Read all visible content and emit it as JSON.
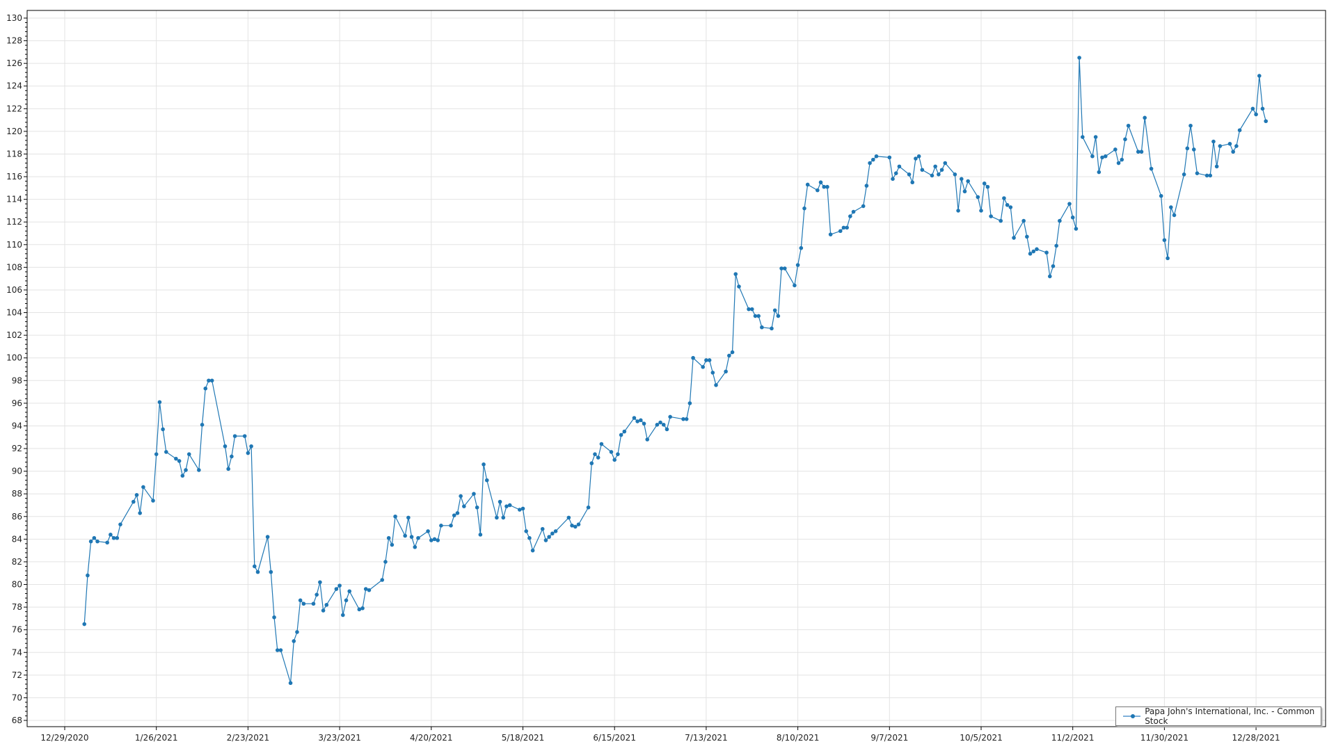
{
  "chart_data": {
    "type": "line",
    "title": "",
    "xlabel": "",
    "ylabel": "",
    "ylim": [
      68,
      130
    ],
    "y_tick_step": 2,
    "x_ticks": [
      "12/29/2020",
      "1/26/2021",
      "2/23/2021",
      "3/23/2021",
      "4/20/2021",
      "5/18/2021",
      "6/15/2021",
      "7/13/2021",
      "8/10/2021",
      "9/7/2021",
      "10/5/2021",
      "11/2/2021",
      "11/30/2021",
      "12/28/2021"
    ],
    "grid": true,
    "legend_position": "bottom-right",
    "line_color": "#1f77b4",
    "series": [
      {
        "name": "Papa John's International, Inc. - Common Stock",
        "points": [
          [
            "2021-01-04",
            76.5
          ],
          [
            "2021-01-05",
            80.8
          ],
          [
            "2021-01-06",
            83.8
          ],
          [
            "2021-01-07",
            84.1
          ],
          [
            "2021-01-08",
            83.8
          ],
          [
            "2021-01-11",
            83.7
          ],
          [
            "2021-01-12",
            84.4
          ],
          [
            "2021-01-13",
            84.1
          ],
          [
            "2021-01-14",
            84.1
          ],
          [
            "2021-01-15",
            85.3
          ],
          [
            "2021-01-19",
            87.3
          ],
          [
            "2021-01-20",
            87.9
          ],
          [
            "2021-01-21",
            86.3
          ],
          [
            "2021-01-22",
            88.6
          ],
          [
            "2021-01-25",
            87.4
          ],
          [
            "2021-01-26",
            91.5
          ],
          [
            "2021-01-27",
            96.1
          ],
          [
            "2021-01-28",
            93.7
          ],
          [
            "2021-01-29",
            91.7
          ],
          [
            "2021-02-01",
            91.1
          ],
          [
            "2021-02-02",
            90.9
          ],
          [
            "2021-02-03",
            89.6
          ],
          [
            "2021-02-04",
            90.1
          ],
          [
            "2021-02-05",
            91.5
          ],
          [
            "2021-02-08",
            90.1
          ],
          [
            "2021-02-09",
            94.1
          ],
          [
            "2021-02-10",
            97.3
          ],
          [
            "2021-02-11",
            98.0
          ],
          [
            "2021-02-12",
            98.0
          ],
          [
            "2021-02-16",
            92.2
          ],
          [
            "2021-02-17",
            90.2
          ],
          [
            "2021-02-18",
            91.3
          ],
          [
            "2021-02-19",
            93.1
          ],
          [
            "2021-02-22",
            93.1
          ],
          [
            "2021-02-23",
            91.6
          ],
          [
            "2021-02-24",
            92.2
          ],
          [
            "2021-02-25",
            81.6
          ],
          [
            "2021-02-26",
            81.1
          ],
          [
            "2021-03-01",
            84.2
          ],
          [
            "2021-03-02",
            81.1
          ],
          [
            "2021-03-03",
            77.1
          ],
          [
            "2021-03-04",
            74.2
          ],
          [
            "2021-03-05",
            74.2
          ],
          [
            "2021-03-08",
            71.3
          ],
          [
            "2021-03-09",
            75.0
          ],
          [
            "2021-03-10",
            75.8
          ],
          [
            "2021-03-11",
            78.6
          ],
          [
            "2021-03-12",
            78.3
          ],
          [
            "2021-03-15",
            78.3
          ],
          [
            "2021-03-16",
            79.1
          ],
          [
            "2021-03-17",
            80.2
          ],
          [
            "2021-03-18",
            77.7
          ],
          [
            "2021-03-19",
            78.2
          ],
          [
            "2021-03-22",
            79.6
          ],
          [
            "2021-03-23",
            79.9
          ],
          [
            "2021-03-24",
            77.3
          ],
          [
            "2021-03-25",
            78.6
          ],
          [
            "2021-03-26",
            79.4
          ],
          [
            "2021-03-29",
            77.8
          ],
          [
            "2021-03-30",
            77.9
          ],
          [
            "2021-03-31",
            79.6
          ],
          [
            "2021-04-01",
            79.5
          ],
          [
            "2021-04-05",
            80.4
          ],
          [
            "2021-04-06",
            82.0
          ],
          [
            "2021-04-07",
            84.1
          ],
          [
            "2021-04-08",
            83.5
          ],
          [
            "2021-04-09",
            86.0
          ],
          [
            "2021-04-12",
            84.3
          ],
          [
            "2021-04-13",
            85.9
          ],
          [
            "2021-04-14",
            84.2
          ],
          [
            "2021-04-15",
            83.3
          ],
          [
            "2021-04-16",
            84.1
          ],
          [
            "2021-04-19",
            84.7
          ],
          [
            "2021-04-20",
            83.9
          ],
          [
            "2021-04-21",
            84.0
          ],
          [
            "2021-04-22",
            83.9
          ],
          [
            "2021-04-23",
            85.2
          ],
          [
            "2021-04-26",
            85.2
          ],
          [
            "2021-04-27",
            86.1
          ],
          [
            "2021-04-28",
            86.3
          ],
          [
            "2021-04-29",
            87.8
          ],
          [
            "2021-04-30",
            86.9
          ],
          [
            "2021-05-03",
            88.0
          ],
          [
            "2021-05-04",
            86.8
          ],
          [
            "2021-05-05",
            84.4
          ],
          [
            "2021-05-06",
            90.6
          ],
          [
            "2021-05-07",
            89.2
          ],
          [
            "2021-05-10",
            85.9
          ],
          [
            "2021-05-11",
            87.3
          ],
          [
            "2021-05-12",
            85.9
          ],
          [
            "2021-05-13",
            86.9
          ],
          [
            "2021-05-14",
            87.0
          ],
          [
            "2021-05-17",
            86.6
          ],
          [
            "2021-05-18",
            86.7
          ],
          [
            "2021-05-19",
            84.7
          ],
          [
            "2021-05-20",
            84.1
          ],
          [
            "2021-05-21",
            83.0
          ],
          [
            "2021-05-24",
            84.9
          ],
          [
            "2021-05-25",
            83.9
          ],
          [
            "2021-05-26",
            84.2
          ],
          [
            "2021-05-27",
            84.5
          ],
          [
            "2021-05-28",
            84.7
          ],
          [
            "2021-06-01",
            85.9
          ],
          [
            "2021-06-02",
            85.2
          ],
          [
            "2021-06-03",
            85.1
          ],
          [
            "2021-06-04",
            85.3
          ],
          [
            "2021-06-07",
            86.8
          ],
          [
            "2021-06-08",
            90.7
          ],
          [
            "2021-06-09",
            91.5
          ],
          [
            "2021-06-10",
            91.2
          ],
          [
            "2021-06-11",
            92.4
          ],
          [
            "2021-06-14",
            91.7
          ],
          [
            "2021-06-15",
            91.0
          ],
          [
            "2021-06-16",
            91.5
          ],
          [
            "2021-06-17",
            93.2
          ],
          [
            "2021-06-18",
            93.5
          ],
          [
            "2021-06-21",
            94.7
          ],
          [
            "2021-06-22",
            94.4
          ],
          [
            "2021-06-23",
            94.5
          ],
          [
            "2021-06-24",
            94.2
          ],
          [
            "2021-06-25",
            92.8
          ],
          [
            "2021-06-28",
            94.1
          ],
          [
            "2021-06-29",
            94.3
          ],
          [
            "2021-06-30",
            94.1
          ],
          [
            "2021-07-01",
            93.7
          ],
          [
            "2021-07-02",
            94.8
          ],
          [
            "2021-07-06",
            94.6
          ],
          [
            "2021-07-07",
            94.6
          ],
          [
            "2021-07-08",
            96.0
          ],
          [
            "2021-07-09",
            100.0
          ],
          [
            "2021-07-12",
            99.2
          ],
          [
            "2021-07-13",
            99.8
          ],
          [
            "2021-07-14",
            99.8
          ],
          [
            "2021-07-15",
            98.7
          ],
          [
            "2021-07-16",
            97.6
          ],
          [
            "2021-07-19",
            98.8
          ],
          [
            "2021-07-20",
            100.2
          ],
          [
            "2021-07-21",
            100.5
          ],
          [
            "2021-07-22",
            107.4
          ],
          [
            "2021-07-23",
            106.3
          ],
          [
            "2021-07-26",
            104.3
          ],
          [
            "2021-07-27",
            104.3
          ],
          [
            "2021-07-28",
            103.7
          ],
          [
            "2021-07-29",
            103.7
          ],
          [
            "2021-07-30",
            102.7
          ],
          [
            "2021-08-02",
            102.6
          ],
          [
            "2021-08-03",
            104.2
          ],
          [
            "2021-08-04",
            103.7
          ],
          [
            "2021-08-05",
            107.9
          ],
          [
            "2021-08-06",
            107.9
          ],
          [
            "2021-08-09",
            106.4
          ],
          [
            "2021-08-10",
            108.2
          ],
          [
            "2021-08-11",
            109.7
          ],
          [
            "2021-08-12",
            113.2
          ],
          [
            "2021-08-13",
            115.3
          ],
          [
            "2021-08-16",
            114.8
          ],
          [
            "2021-08-17",
            115.5
          ],
          [
            "2021-08-18",
            115.1
          ],
          [
            "2021-08-19",
            115.1
          ],
          [
            "2021-08-20",
            110.9
          ],
          [
            "2021-08-23",
            111.2
          ],
          [
            "2021-08-24",
            111.5
          ],
          [
            "2021-08-25",
            111.5
          ],
          [
            "2021-08-26",
            112.5
          ],
          [
            "2021-08-27",
            112.9
          ],
          [
            "2021-08-30",
            113.4
          ],
          [
            "2021-08-31",
            115.2
          ],
          [
            "2021-09-01",
            117.2
          ],
          [
            "2021-09-02",
            117.5
          ],
          [
            "2021-09-03",
            117.8
          ],
          [
            "2021-09-07",
            117.7
          ],
          [
            "2021-09-08",
            115.8
          ],
          [
            "2021-09-09",
            116.3
          ],
          [
            "2021-09-10",
            116.9
          ],
          [
            "2021-09-13",
            116.2
          ],
          [
            "2021-09-14",
            115.5
          ],
          [
            "2021-09-15",
            117.6
          ],
          [
            "2021-09-16",
            117.8
          ],
          [
            "2021-09-17",
            116.6
          ],
          [
            "2021-09-20",
            116.1
          ],
          [
            "2021-09-21",
            116.9
          ],
          [
            "2021-09-22",
            116.2
          ],
          [
            "2021-09-23",
            116.6
          ],
          [
            "2021-09-24",
            117.2
          ],
          [
            "2021-09-27",
            116.2
          ],
          [
            "2021-09-28",
            113.0
          ],
          [
            "2021-09-29",
            115.8
          ],
          [
            "2021-09-30",
            114.7
          ],
          [
            "2021-10-01",
            115.6
          ],
          [
            "2021-10-04",
            114.2
          ],
          [
            "2021-10-05",
            113.0
          ],
          [
            "2021-10-06",
            115.4
          ],
          [
            "2021-10-07",
            115.1
          ],
          [
            "2021-10-08",
            112.5
          ],
          [
            "2021-10-11",
            112.1
          ],
          [
            "2021-10-12",
            114.1
          ],
          [
            "2021-10-13",
            113.5
          ],
          [
            "2021-10-14",
            113.3
          ],
          [
            "2021-10-15",
            110.6
          ],
          [
            "2021-10-18",
            112.1
          ],
          [
            "2021-10-19",
            110.7
          ],
          [
            "2021-10-20",
            109.2
          ],
          [
            "2021-10-21",
            109.4
          ],
          [
            "2021-10-22",
            109.6
          ],
          [
            "2021-10-25",
            109.3
          ],
          [
            "2021-10-26",
            107.2
          ],
          [
            "2021-10-27",
            108.1
          ],
          [
            "2021-10-28",
            109.9
          ],
          [
            "2021-10-29",
            112.1
          ],
          [
            "2021-11-01",
            113.6
          ],
          [
            "2021-11-02",
            112.4
          ],
          [
            "2021-11-03",
            111.4
          ],
          [
            "2021-11-04",
            126.5
          ],
          [
            "2021-11-05",
            119.5
          ],
          [
            "2021-11-08",
            117.8
          ],
          [
            "2021-11-09",
            119.5
          ],
          [
            "2021-11-10",
            116.4
          ],
          [
            "2021-11-11",
            117.7
          ],
          [
            "2021-11-12",
            117.8
          ],
          [
            "2021-11-15",
            118.4
          ],
          [
            "2021-11-16",
            117.2
          ],
          [
            "2021-11-17",
            117.5
          ],
          [
            "2021-11-18",
            119.3
          ],
          [
            "2021-11-19",
            120.5
          ],
          [
            "2021-11-22",
            118.2
          ],
          [
            "2021-11-23",
            118.2
          ],
          [
            "2021-11-24",
            121.2
          ],
          [
            "2021-11-26",
            116.7
          ],
          [
            "2021-11-29",
            114.3
          ],
          [
            "2021-11-30",
            110.4
          ],
          [
            "2021-12-01",
            108.8
          ],
          [
            "2021-12-02",
            113.3
          ],
          [
            "2021-12-03",
            112.6
          ],
          [
            "2021-12-06",
            116.2
          ],
          [
            "2021-12-07",
            118.5
          ],
          [
            "2021-12-08",
            120.5
          ],
          [
            "2021-12-09",
            118.4
          ],
          [
            "2021-12-10",
            116.3
          ],
          [
            "2021-12-13",
            116.1
          ],
          [
            "2021-12-14",
            116.1
          ],
          [
            "2021-12-15",
            119.1
          ],
          [
            "2021-12-16",
            116.9
          ],
          [
            "2021-12-17",
            118.7
          ],
          [
            "2021-12-20",
            118.9
          ],
          [
            "2021-12-21",
            118.2
          ],
          [
            "2021-12-22",
            118.7
          ],
          [
            "2021-12-23",
            120.1
          ],
          [
            "2021-12-27",
            122.0
          ],
          [
            "2021-12-28",
            121.5
          ],
          [
            "2021-12-29",
            124.9
          ],
          [
            "2021-12-30",
            122.0
          ],
          [
            "2021-12-31",
            120.9
          ]
        ]
      }
    ]
  }
}
